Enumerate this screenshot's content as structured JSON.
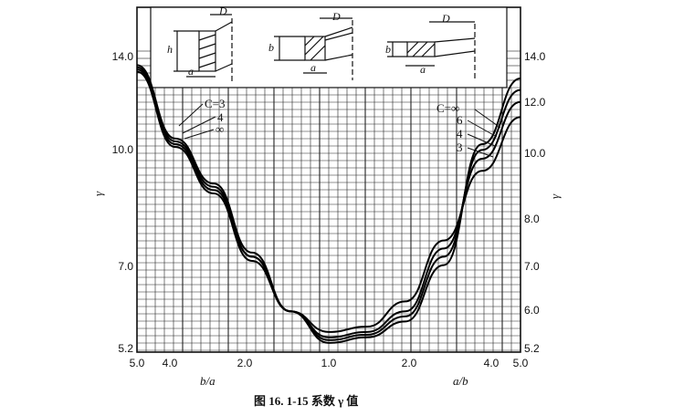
{
  "chart_data": {
    "type": "line",
    "caption": "图 16. 1-15   系数 γ 值",
    "ylabel_left": "γ",
    "ylabel_right": "γ",
    "xlabel_left": "b/a",
    "xlabel_right": "a/b",
    "x_ticks": [
      "5.0",
      "4.0",
      "2.0",
      "1.0",
      "2.0",
      "4.0",
      "5.0"
    ],
    "y_ticks_left": [
      "14.0",
      "10.0",
      "7.0",
      "5.2"
    ],
    "y_ticks_right": [
      "14.0",
      "12.0",
      "10.0",
      "8.0",
      "7.0",
      "6.0",
      "5.2"
    ],
    "left_labels": [
      "C=3",
      "4",
      "∞"
    ],
    "right_labels": [
      "C=∞",
      "6",
      "4",
      "3"
    ],
    "inset_labels": {
      "D": "D",
      "h": "h",
      "a": "a",
      "b": "b"
    },
    "grid": true,
    "series": [
      {
        "name": "C=3",
        "x": [
          5.0,
          4.0,
          3.0,
          2.0,
          1.5,
          1.0,
          1.5,
          2.0,
          3.0,
          4.0,
          5.0
        ],
        "y": [
          13.3,
          10.3,
          8.8,
          7.0,
          5.9,
          5.5,
          5.6,
          6.1,
          7.5,
          9.5,
          11.4
        ]
      },
      {
        "name": "4",
        "x": [
          5.0,
          4.0,
          3.0,
          2.0,
          1.5,
          1.0,
          1.5,
          2.0,
          3.0,
          4.0,
          5.0
        ],
        "y": [
          13.4,
          10.4,
          8.9,
          7.1,
          5.9,
          5.4,
          5.5,
          5.9,
          7.3,
          9.9,
          12.0
        ]
      },
      {
        "name": "6",
        "x": [
          5.0,
          4.0,
          3.0,
          2.0,
          1.5,
          1.0,
          1.5,
          2.0,
          3.0,
          4.0,
          5.0
        ],
        "y": [
          13.5,
          10.5,
          9.0,
          7.1,
          5.9,
          5.35,
          5.45,
          5.8,
          7.1,
          10.2,
          12.5
        ]
      },
      {
        "name": "∞",
        "x": [
          5.0,
          4.0,
          3.0,
          2.0,
          1.5,
          1.0,
          1.5,
          2.0,
          3.0,
          4.0,
          5.0
        ],
        "y": [
          13.6,
          10.6,
          9.1,
          7.2,
          5.9,
          5.3,
          5.4,
          5.7,
          6.9,
          10.4,
          13.0
        ]
      }
    ]
  }
}
